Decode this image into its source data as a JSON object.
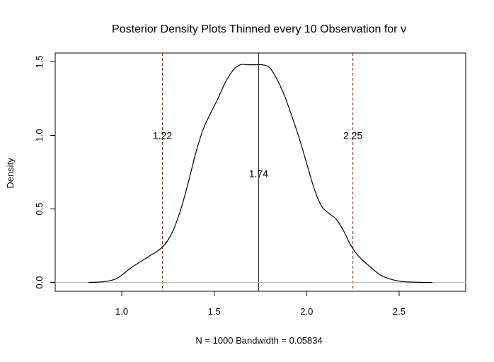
{
  "chart_data": {
    "type": "line",
    "title": "Posterior Density Plots Thinned every 10 Observation for ν",
    "xlabel": "N = 1000   Bandwidth = 0.05834",
    "ylabel": "Density",
    "xlim": [
      0.64,
      2.86
    ],
    "ylim": [
      -0.06,
      1.56
    ],
    "x_ticks": [
      1.0,
      1.5,
      2.0,
      2.5
    ],
    "x_tick_labels": [
      "1.0",
      "1.5",
      "2.0",
      "2.5"
    ],
    "y_ticks": [
      0.0,
      0.5,
      1.0,
      1.5
    ],
    "y_tick_labels": [
      "0.0",
      "0.5",
      "1.0",
      "1.5"
    ],
    "grid": false,
    "reference_lines": [
      {
        "kind": "vertical",
        "x": 1.22,
        "color": "#cc0000",
        "style": "dashed",
        "label": "1.22",
        "label_y": 1.0
      },
      {
        "kind": "vertical",
        "x": 1.74,
        "color": "#000080",
        "style": "solid",
        "label": "1.74",
        "label_y": 0.74
      },
      {
        "kind": "vertical",
        "x": 2.25,
        "color": "#cc0000",
        "style": "dashed",
        "label": "2.25",
        "label_y": 1.0
      },
      {
        "kind": "horizontal",
        "y": 0.0,
        "color": "#bebebe",
        "style": "solid"
      }
    ],
    "series": [
      {
        "color": "#000000",
        "x": [
          0.82,
          0.9,
          0.96,
          1.0,
          1.05,
          1.1,
          1.15,
          1.2,
          1.24,
          1.28,
          1.32,
          1.36,
          1.4,
          1.44,
          1.48,
          1.52,
          1.56,
          1.6,
          1.64,
          1.68,
          1.72,
          1.76,
          1.8,
          1.84,
          1.88,
          1.92,
          1.96,
          2.0,
          2.04,
          2.08,
          2.12,
          2.16,
          2.2,
          2.24,
          2.28,
          2.34,
          2.4,
          2.46,
          2.52,
          2.58,
          2.68
        ],
        "y": [
          0.0,
          0.005,
          0.02,
          0.05,
          0.1,
          0.14,
          0.18,
          0.22,
          0.27,
          0.36,
          0.5,
          0.68,
          0.88,
          1.04,
          1.15,
          1.25,
          1.36,
          1.44,
          1.48,
          1.48,
          1.48,
          1.48,
          1.46,
          1.38,
          1.27,
          1.13,
          0.98,
          0.81,
          0.64,
          0.52,
          0.47,
          0.43,
          0.35,
          0.25,
          0.18,
          0.11,
          0.05,
          0.02,
          0.006,
          0.002,
          0.0
        ]
      }
    ]
  }
}
